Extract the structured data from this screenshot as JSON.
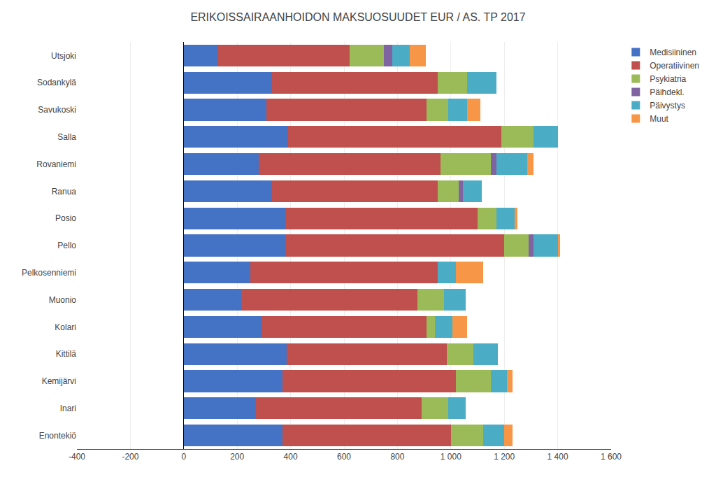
{
  "chart_data": {
    "type": "bar",
    "orientation": "horizontal",
    "stacked": true,
    "title": "ERIKOISSAIRAANHOIDON MAKSUOSUUDET EUR / AS. TP 2017",
    "categories": [
      "Utsjoki",
      "Sodankylä",
      "Savukoski",
      "Salla",
      "Rovaniemi",
      "Ranua",
      "Posio",
      "Pello",
      "Pelkosenniemi",
      "Muonio",
      "Kolari",
      "Kittilä",
      "Kemijärvi",
      "Inari",
      "Enontekiö"
    ],
    "series": [
      {
        "name": "Medisiininen",
        "color": "#4472C4",
        "values": [
          130,
          330,
          310,
          390,
          280,
          330,
          380,
          380,
          250,
          215,
          290,
          385,
          370,
          270,
          370
        ]
      },
      {
        "name": "Operatiivinen",
        "color": "#C0504D",
        "values": [
          490,
          620,
          600,
          800,
          680,
          620,
          720,
          820,
          700,
          660,
          620,
          600,
          650,
          620,
          630
        ]
      },
      {
        "name": "Psykiatria",
        "color": "#9BBB59",
        "values": [
          130,
          110,
          80,
          120,
          190,
          80,
          70,
          90,
          0,
          100,
          30,
          100,
          130,
          100,
          120
        ]
      },
      {
        "name": "Päihdekl.",
        "color": "#8064A2",
        "values": [
          30,
          0,
          0,
          0,
          20,
          15,
          0,
          20,
          0,
          0,
          0,
          0,
          0,
          0,
          0
        ]
      },
      {
        "name": "Päivystys",
        "color": "#4BACC6",
        "values": [
          65,
          110,
          70,
          90,
          115,
          70,
          70,
          90,
          70,
          80,
          65,
          90,
          60,
          65,
          80
        ]
      },
      {
        "name": "Muut",
        "color": "#F79646",
        "values": [
          60,
          0,
          50,
          0,
          25,
          0,
          10,
          10,
          100,
          0,
          55,
          0,
          20,
          0,
          30
        ]
      }
    ],
    "xlim": [
      -400,
      1600
    ],
    "xticks": [
      -400,
      -200,
      0,
      200,
      400,
      600,
      800,
      {
        "value": 1000,
        "label": "1 000"
      },
      {
        "value": 1200,
        "label": "1 200"
      },
      {
        "value": 1400,
        "label": "1 400"
      },
      {
        "value": 1600,
        "label": "1 600"
      }
    ],
    "grid": true,
    "legend": "right"
  }
}
